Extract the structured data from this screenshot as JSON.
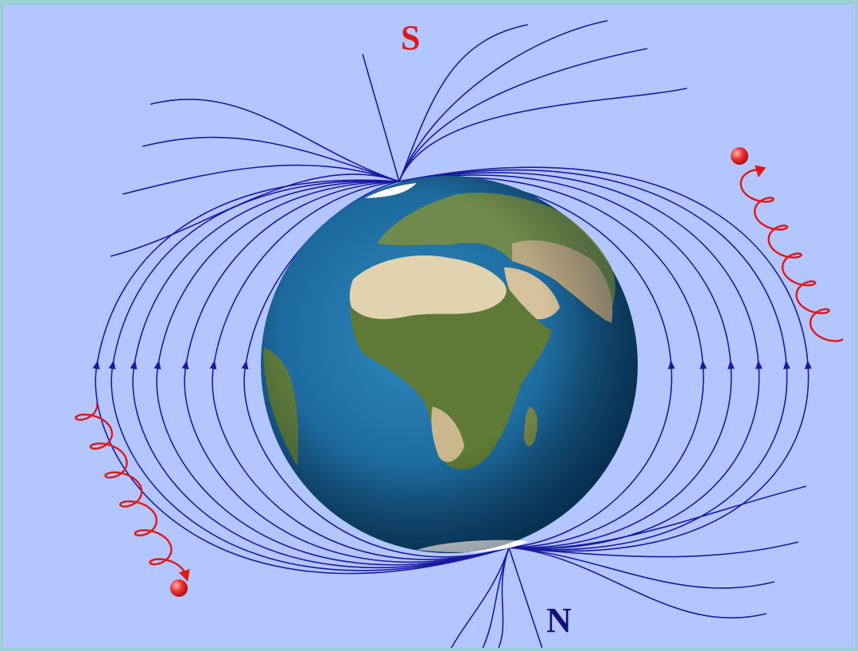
{
  "labels": {
    "south_pole": "S",
    "north_pole": "N"
  },
  "colors": {
    "background": "#b4c6ff",
    "field_lines": "#1a1aa0",
    "labels": "#e01818",
    "labels_dark": "#10107a",
    "particle": "#ee2222",
    "ocean": "#1f6aa0",
    "land_green": "#5e7a3a",
    "land_desert": "#d9c9a6",
    "ice": "#ffffff"
  },
  "icons": [
    "earth-globe",
    "charged-particle",
    "spiral-trajectory",
    "field-arrow"
  ]
}
